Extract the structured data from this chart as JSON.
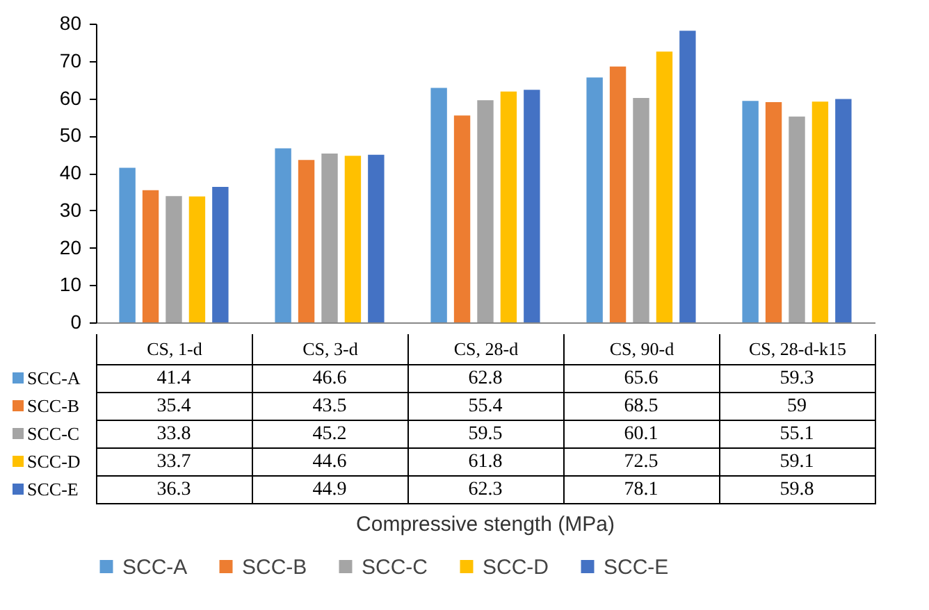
{
  "chart_data": {
    "type": "bar",
    "annotations": [
      "Compressive stength (MPa)"
    ],
    "categories": [
      "CS, 1-d",
      "CS, 3-d",
      "CS, 28-d",
      "CS, 90-d",
      "CS, 28-d-k15"
    ],
    "series": [
      {
        "name": "SCC-A",
        "color": "#5b9bd5",
        "values": [
          41.4,
          46.6,
          62.8,
          65.6,
          59.3
        ]
      },
      {
        "name": "SCC-B",
        "color": "#ed7d31",
        "values": [
          35.4,
          43.5,
          55.4,
          68.5,
          59
        ]
      },
      {
        "name": "SCC-C",
        "color": "#a5a5a5",
        "values": [
          33.8,
          45.2,
          59.5,
          60.1,
          55.1
        ]
      },
      {
        "name": "SCC-D",
        "color": "#ffc000",
        "values": [
          33.7,
          44.6,
          61.8,
          72.5,
          59.1
        ]
      },
      {
        "name": "SCC-E",
        "color": "#4472c4",
        "values": [
          36.3,
          44.9,
          62.3,
          78.1,
          59.8
        ]
      }
    ],
    "ylim": [
      0,
      80
    ],
    "yticks": [
      0,
      10,
      20,
      30,
      40,
      50,
      60,
      70,
      80
    ],
    "data_labels": true,
    "legend": "bottom"
  }
}
